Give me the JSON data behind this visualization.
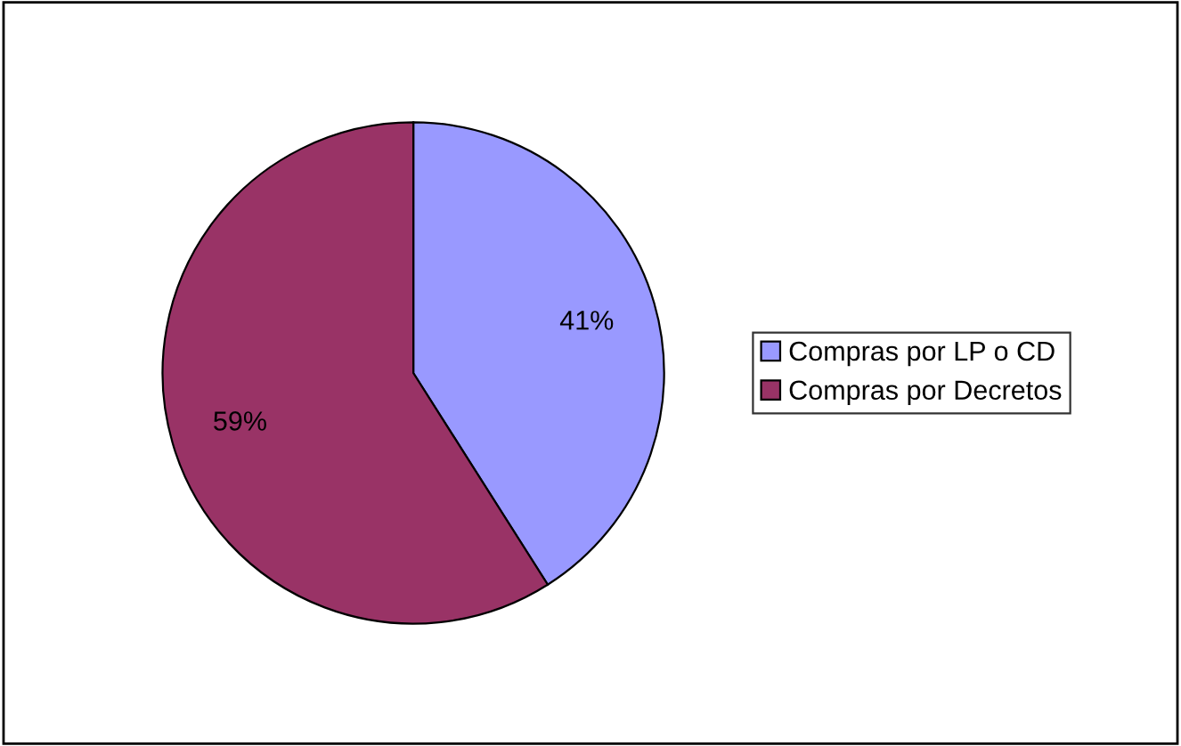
{
  "chart_data": {
    "type": "pie",
    "categories": [
      "Compras por LP o CD",
      "Compras por Decretos"
    ],
    "values": [
      41,
      59
    ],
    "colors": [
      "#9999ff",
      "#993366"
    ],
    "value_labels": [
      "41%",
      "59%"
    ],
    "legend": "right"
  }
}
